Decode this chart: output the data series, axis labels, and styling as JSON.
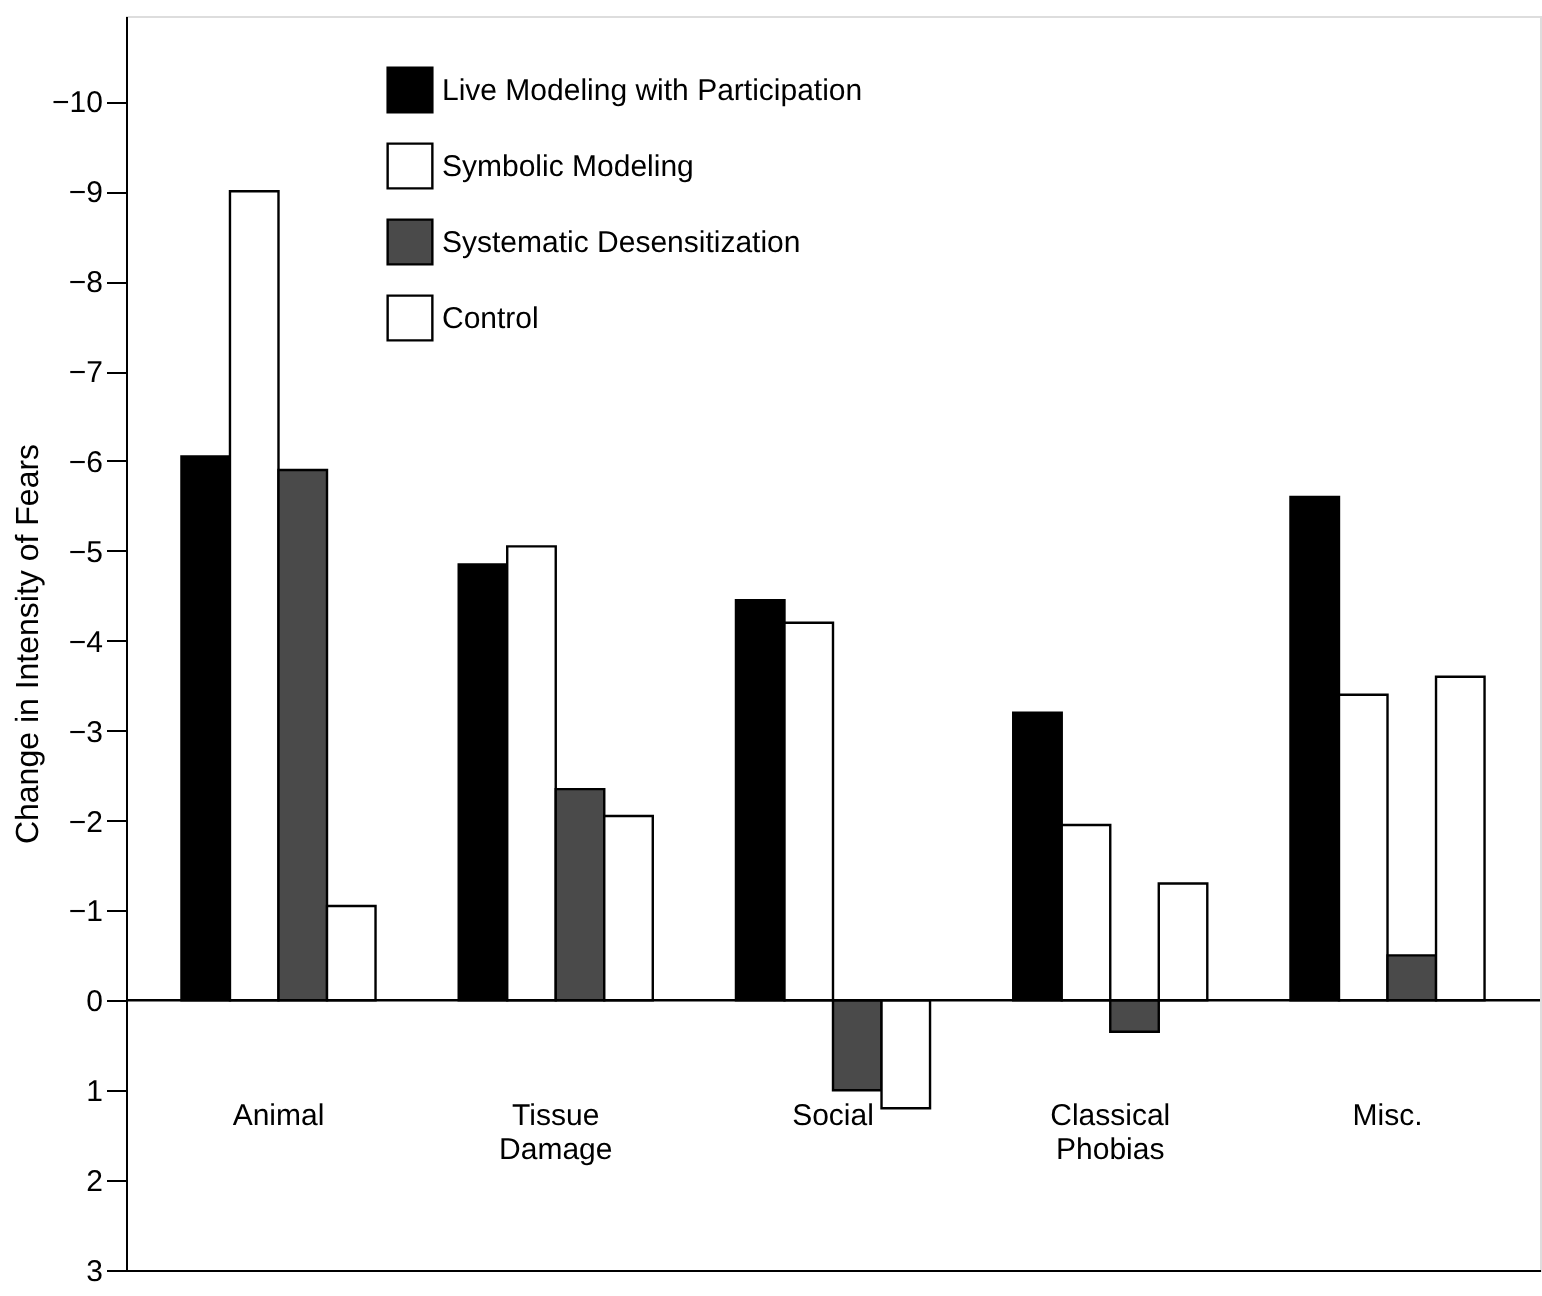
{
  "chart_data": {
    "type": "bar",
    "ylabel": "Change in Intensity of Fears",
    "categories": [
      "Animal",
      "Tissue Damage",
      "Social",
      "Classical Phobias",
      "Misc."
    ],
    "series": [
      {
        "name": "Live Modeling with Participation",
        "color": "#000000",
        "values": [
          -6.05,
          -4.85,
          -4.45,
          -3.2,
          -5.6
        ]
      },
      {
        "name": "Symbolic Modeling",
        "color": "#ffffff",
        "values": [
          -9.0,
          -5.05,
          -4.2,
          -1.95,
          -3.4
        ]
      },
      {
        "name": "Systematic Desensitization",
        "color": "#4a4a4a",
        "values": [
          -5.9,
          -2.35,
          1.0,
          0.35,
          -0.5
        ]
      },
      {
        "name": "Control",
        "color": "#ffffff",
        "values": [
          -1.05,
          -2.05,
          1.2,
          -1.3,
          -3.6
        ]
      }
    ],
    "ylim": [
      3,
      -10.95
    ],
    "yticks": [
      -10,
      -9,
      -8,
      -7,
      -6,
      -5,
      -4,
      -3,
      -2,
      -1,
      0,
      1,
      2,
      3
    ],
    "ref_lines": [
      {
        "axis": "y",
        "value": 0
      }
    ],
    "grid": false,
    "legend": "top left"
  }
}
